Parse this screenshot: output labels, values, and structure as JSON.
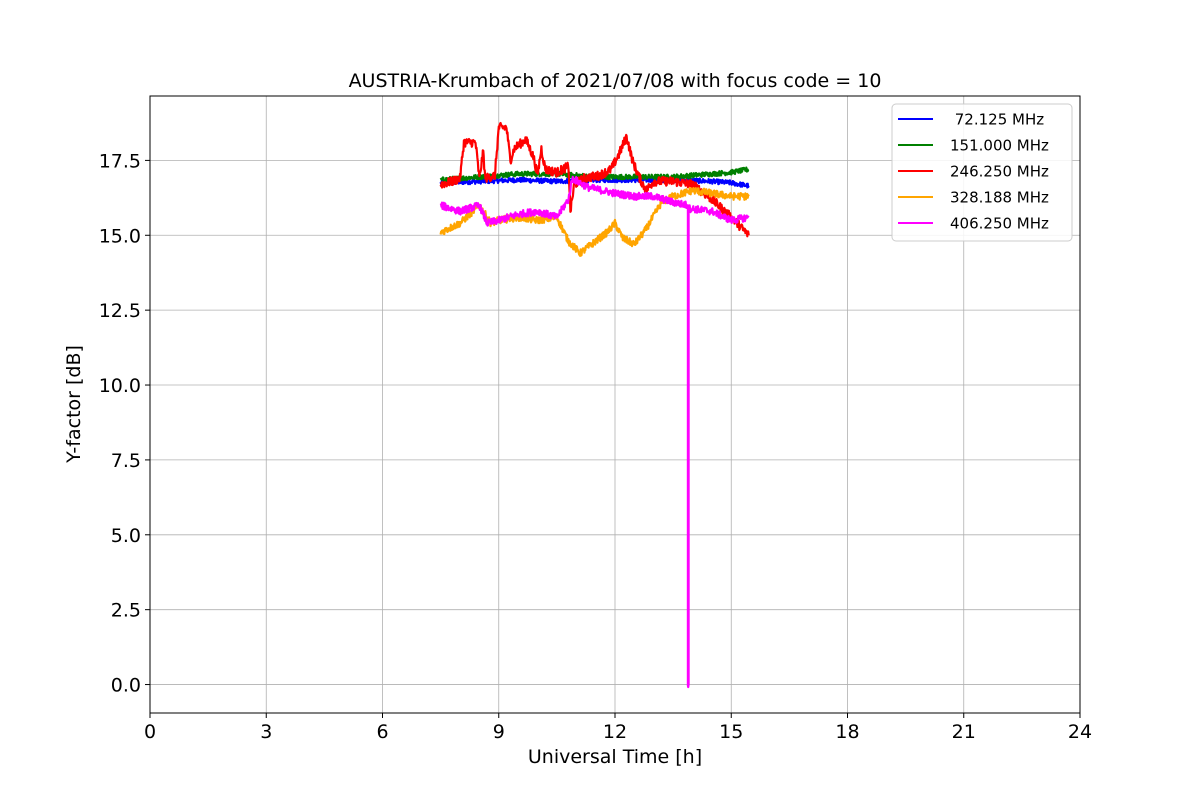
{
  "chart_data": {
    "type": "line",
    "title": "AUSTRIA-Krumbach of 2021/07/08 with focus code = 10",
    "xlabel": "Universal Time [h]",
    "ylabel": "Y-factor [dB]",
    "xlim": [
      0,
      24
    ],
    "ylim": [
      -0.95,
      19.65
    ],
    "xticks": [
      0,
      3,
      6,
      9,
      12,
      15,
      18,
      21,
      24
    ],
    "xtick_labels": [
      "0",
      "3",
      "6",
      "9",
      "12",
      "15",
      "18",
      "21",
      "24"
    ],
    "yticks": [
      0,
      2.5,
      5,
      7.5,
      10,
      12.5,
      15,
      17.5
    ],
    "ytick_labels": [
      "0.0",
      "2.5",
      "5.0",
      "7.5",
      "10.0",
      "12.5",
      "15.0",
      "17.5"
    ],
    "grid": true,
    "legend_position": "top-right",
    "series": [
      {
        "name": " 72.125 MHz",
        "color": "#0000ff",
        "noise": 0.08,
        "points": [
          [
            7.5,
            16.75
          ],
          [
            8.5,
            16.8
          ],
          [
            9.5,
            16.85
          ],
          [
            10.5,
            16.8
          ],
          [
            11.5,
            16.85
          ],
          [
            12.5,
            16.85
          ],
          [
            13.5,
            16.85
          ],
          [
            14.5,
            16.8
          ],
          [
            15.0,
            16.75
          ],
          [
            15.45,
            16.65
          ]
        ]
      },
      {
        "name": "151.000 MHz",
        "color": "#008000",
        "noise": 0.08,
        "points": [
          [
            7.5,
            16.85
          ],
          [
            8.5,
            16.95
          ],
          [
            9.5,
            17.05
          ],
          [
            10.5,
            17.05
          ],
          [
            11.5,
            16.95
          ],
          [
            12.5,
            16.95
          ],
          [
            13.5,
            16.95
          ],
          [
            14.5,
            17.05
          ],
          [
            15.0,
            17.1
          ],
          [
            15.45,
            17.2
          ]
        ]
      },
      {
        "name": "246.250 MHz",
        "color": "#ff0000",
        "noise": 0.15,
        "points": [
          [
            7.5,
            16.7
          ],
          [
            7.8,
            16.8
          ],
          [
            8.0,
            16.9
          ],
          [
            8.1,
            18.1
          ],
          [
            8.4,
            18.1
          ],
          [
            8.5,
            16.9
          ],
          [
            8.6,
            17.8
          ],
          [
            8.65,
            16.9
          ],
          [
            8.9,
            17.0
          ],
          [
            9.0,
            18.6
          ],
          [
            9.2,
            18.6
          ],
          [
            9.3,
            17.5
          ],
          [
            9.4,
            17.9
          ],
          [
            9.7,
            18.2
          ],
          [
            9.9,
            17.6
          ],
          [
            10.0,
            17.0
          ],
          [
            10.1,
            17.9
          ],
          [
            10.2,
            17.2
          ],
          [
            10.5,
            17.1
          ],
          [
            10.8,
            17.3
          ],
          [
            10.85,
            15.8
          ],
          [
            10.95,
            16.7
          ],
          [
            11.2,
            16.9
          ],
          [
            11.6,
            17.0
          ],
          [
            11.9,
            17.2
          ],
          [
            12.1,
            17.7
          ],
          [
            12.3,
            18.3
          ],
          [
            12.45,
            17.5
          ],
          [
            12.6,
            17.0
          ],
          [
            12.8,
            16.5
          ],
          [
            13.0,
            16.8
          ],
          [
            13.5,
            16.8
          ],
          [
            14.0,
            16.7
          ],
          [
            14.5,
            16.2
          ],
          [
            15.0,
            15.6
          ],
          [
            15.45,
            15.0
          ]
        ]
      },
      {
        "name": "328.188 MHz",
        "color": "#ffa500",
        "noise": 0.12,
        "points": [
          [
            7.5,
            15.1
          ],
          [
            8.0,
            15.4
          ],
          [
            8.5,
            16.0
          ],
          [
            8.8,
            15.4
          ],
          [
            9.0,
            15.5
          ],
          [
            9.5,
            15.6
          ],
          [
            10.0,
            15.5
          ],
          [
            10.5,
            15.6
          ],
          [
            10.8,
            14.8
          ],
          [
            11.1,
            14.4
          ],
          [
            11.5,
            14.8
          ],
          [
            11.8,
            15.1
          ],
          [
            12.0,
            15.4
          ],
          [
            12.2,
            14.9
          ],
          [
            12.5,
            14.7
          ],
          [
            12.8,
            15.2
          ],
          [
            13.2,
            16.1
          ],
          [
            13.5,
            16.3
          ],
          [
            14.0,
            16.5
          ],
          [
            14.5,
            16.4
          ],
          [
            15.0,
            16.3
          ],
          [
            15.45,
            16.3
          ]
        ]
      },
      {
        "name": "406.250 MHz",
        "color": "#ff00ff",
        "noise": 0.12,
        "points": [
          [
            7.5,
            16.0
          ],
          [
            8.0,
            15.8
          ],
          [
            8.5,
            16.0
          ],
          [
            8.7,
            15.4
          ],
          [
            9.0,
            15.5
          ],
          [
            9.5,
            15.7
          ],
          [
            10.0,
            15.8
          ],
          [
            10.5,
            15.6
          ],
          [
            10.8,
            16.2
          ],
          [
            10.9,
            16.9
          ],
          [
            11.3,
            16.6
          ],
          [
            12.0,
            16.4
          ],
          [
            12.5,
            16.3
          ],
          [
            13.0,
            16.3
          ],
          [
            13.5,
            16.1
          ],
          [
            13.88,
            16.0
          ],
          [
            13.88,
            0.0
          ],
          [
            13.9,
            0.0
          ],
          [
            13.9,
            15.9
          ],
          [
            14.5,
            15.8
          ],
          [
            15.0,
            15.5
          ],
          [
            15.45,
            15.6
          ]
        ]
      }
    ]
  }
}
